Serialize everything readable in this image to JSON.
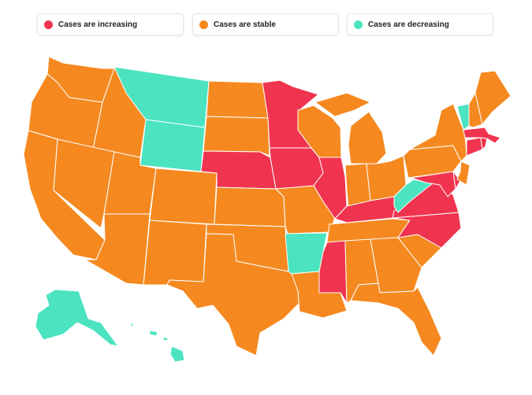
{
  "legend": [
    {
      "label": "Cases are increasing",
      "color": "#F0344F"
    },
    {
      "label": "Cases are stable",
      "color": "#F5891F"
    },
    {
      "label": "Cases are decreasing",
      "color": "#4BE3C0"
    }
  ],
  "colors": {
    "increasing": "#F0344F",
    "stable": "#F5891F",
    "decreasing": "#4BE3C0"
  },
  "states": {
    "WA": "stable",
    "OR": "stable",
    "CA": "stable",
    "ID": "stable",
    "NV": "stable",
    "MT": "decreasing",
    "WY": "decreasing",
    "UT": "stable",
    "AZ": "stable",
    "CO": "stable",
    "NM": "stable",
    "ND": "stable",
    "SD": "stable",
    "NE": "increasing",
    "KS": "stable",
    "OK": "stable",
    "TX": "stable",
    "MN": "increasing",
    "IA": "increasing",
    "MO": "stable",
    "AR": "decreasing",
    "LA": "stable",
    "WI": "stable",
    "IL": "increasing",
    "MS": "increasing",
    "MI": "stable",
    "IN": "stable",
    "KY": "increasing",
    "TN": "stable",
    "AL": "stable",
    "OH": "stable",
    "GA": "stable",
    "FL": "stable",
    "SC": "stable",
    "NC": "increasing",
    "VA": "increasing",
    "WV": "decreasing",
    "PA": "stable",
    "NY": "stable",
    "MD": "increasing",
    "DE": "increasing",
    "NJ": "stable",
    "CT": "increasing",
    "RI": "increasing",
    "MA": "increasing",
    "VT": "decreasing",
    "NH": "stable",
    "ME": "stable",
    "AK": "decreasing",
    "HI": "decreasing"
  }
}
